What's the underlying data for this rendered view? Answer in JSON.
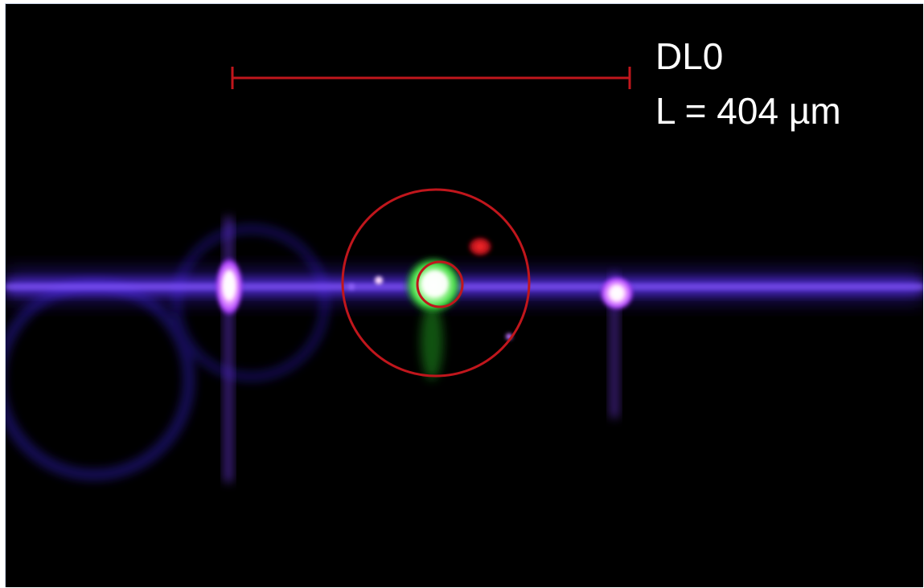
{
  "figure": {
    "device_label": "DL0",
    "length_label": "L = 404 µm",
    "colors": {
      "background": "#000000",
      "annotation_red": "#c0161c",
      "fluorescence_violet": "#6a3cff",
      "fluorescence_pink": "#ffd9ff",
      "fluorescence_green": "#3fdc3f",
      "spot_red": "#d4141b",
      "text": "#ffffff"
    }
  }
}
